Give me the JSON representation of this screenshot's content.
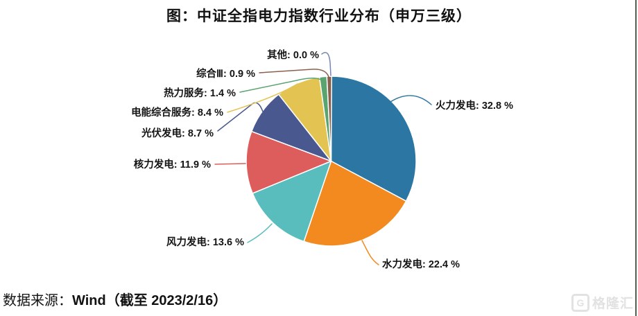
{
  "title": "图：中证全指电力指数行业分布（申万三级）",
  "source": {
    "prefix": "数据来源：",
    "detail": "Wind（截至 2023/2/16）"
  },
  "watermark": {
    "icon": "gelonghui-logo",
    "icon_letter": "G",
    "brand": "格隆汇"
  },
  "chart_data": {
    "type": "pie",
    "title": "图：中证全指电力指数行业分布（申万三级）",
    "unit": "%",
    "start_angle_deg": 0,
    "direction": "clockwise",
    "legend_position": "none",
    "label_format": "name: value %",
    "series": [
      {
        "name": "火力发电",
        "value": 32.8,
        "color": "#2b76a3"
      },
      {
        "name": "水力发电",
        "value": 22.4,
        "color": "#f28a1f"
      },
      {
        "name": "风力发电",
        "value": 13.6,
        "color": "#5abdbd"
      },
      {
        "name": "核力发电",
        "value": 11.9,
        "color": "#dd5c5c"
      },
      {
        "name": "光伏发电",
        "value": 8.7,
        "color": "#4a5890"
      },
      {
        "name": "电能综合服务",
        "value": 8.4,
        "color": "#e3c453"
      },
      {
        "name": "热力服务",
        "value": 1.4,
        "color": "#5aa470"
      },
      {
        "name": "综合Ⅲ",
        "value": 0.9,
        "color": "#8a5f4d"
      },
      {
        "name": "其他",
        "value": 0.0,
        "color": "#7585b5"
      }
    ]
  }
}
